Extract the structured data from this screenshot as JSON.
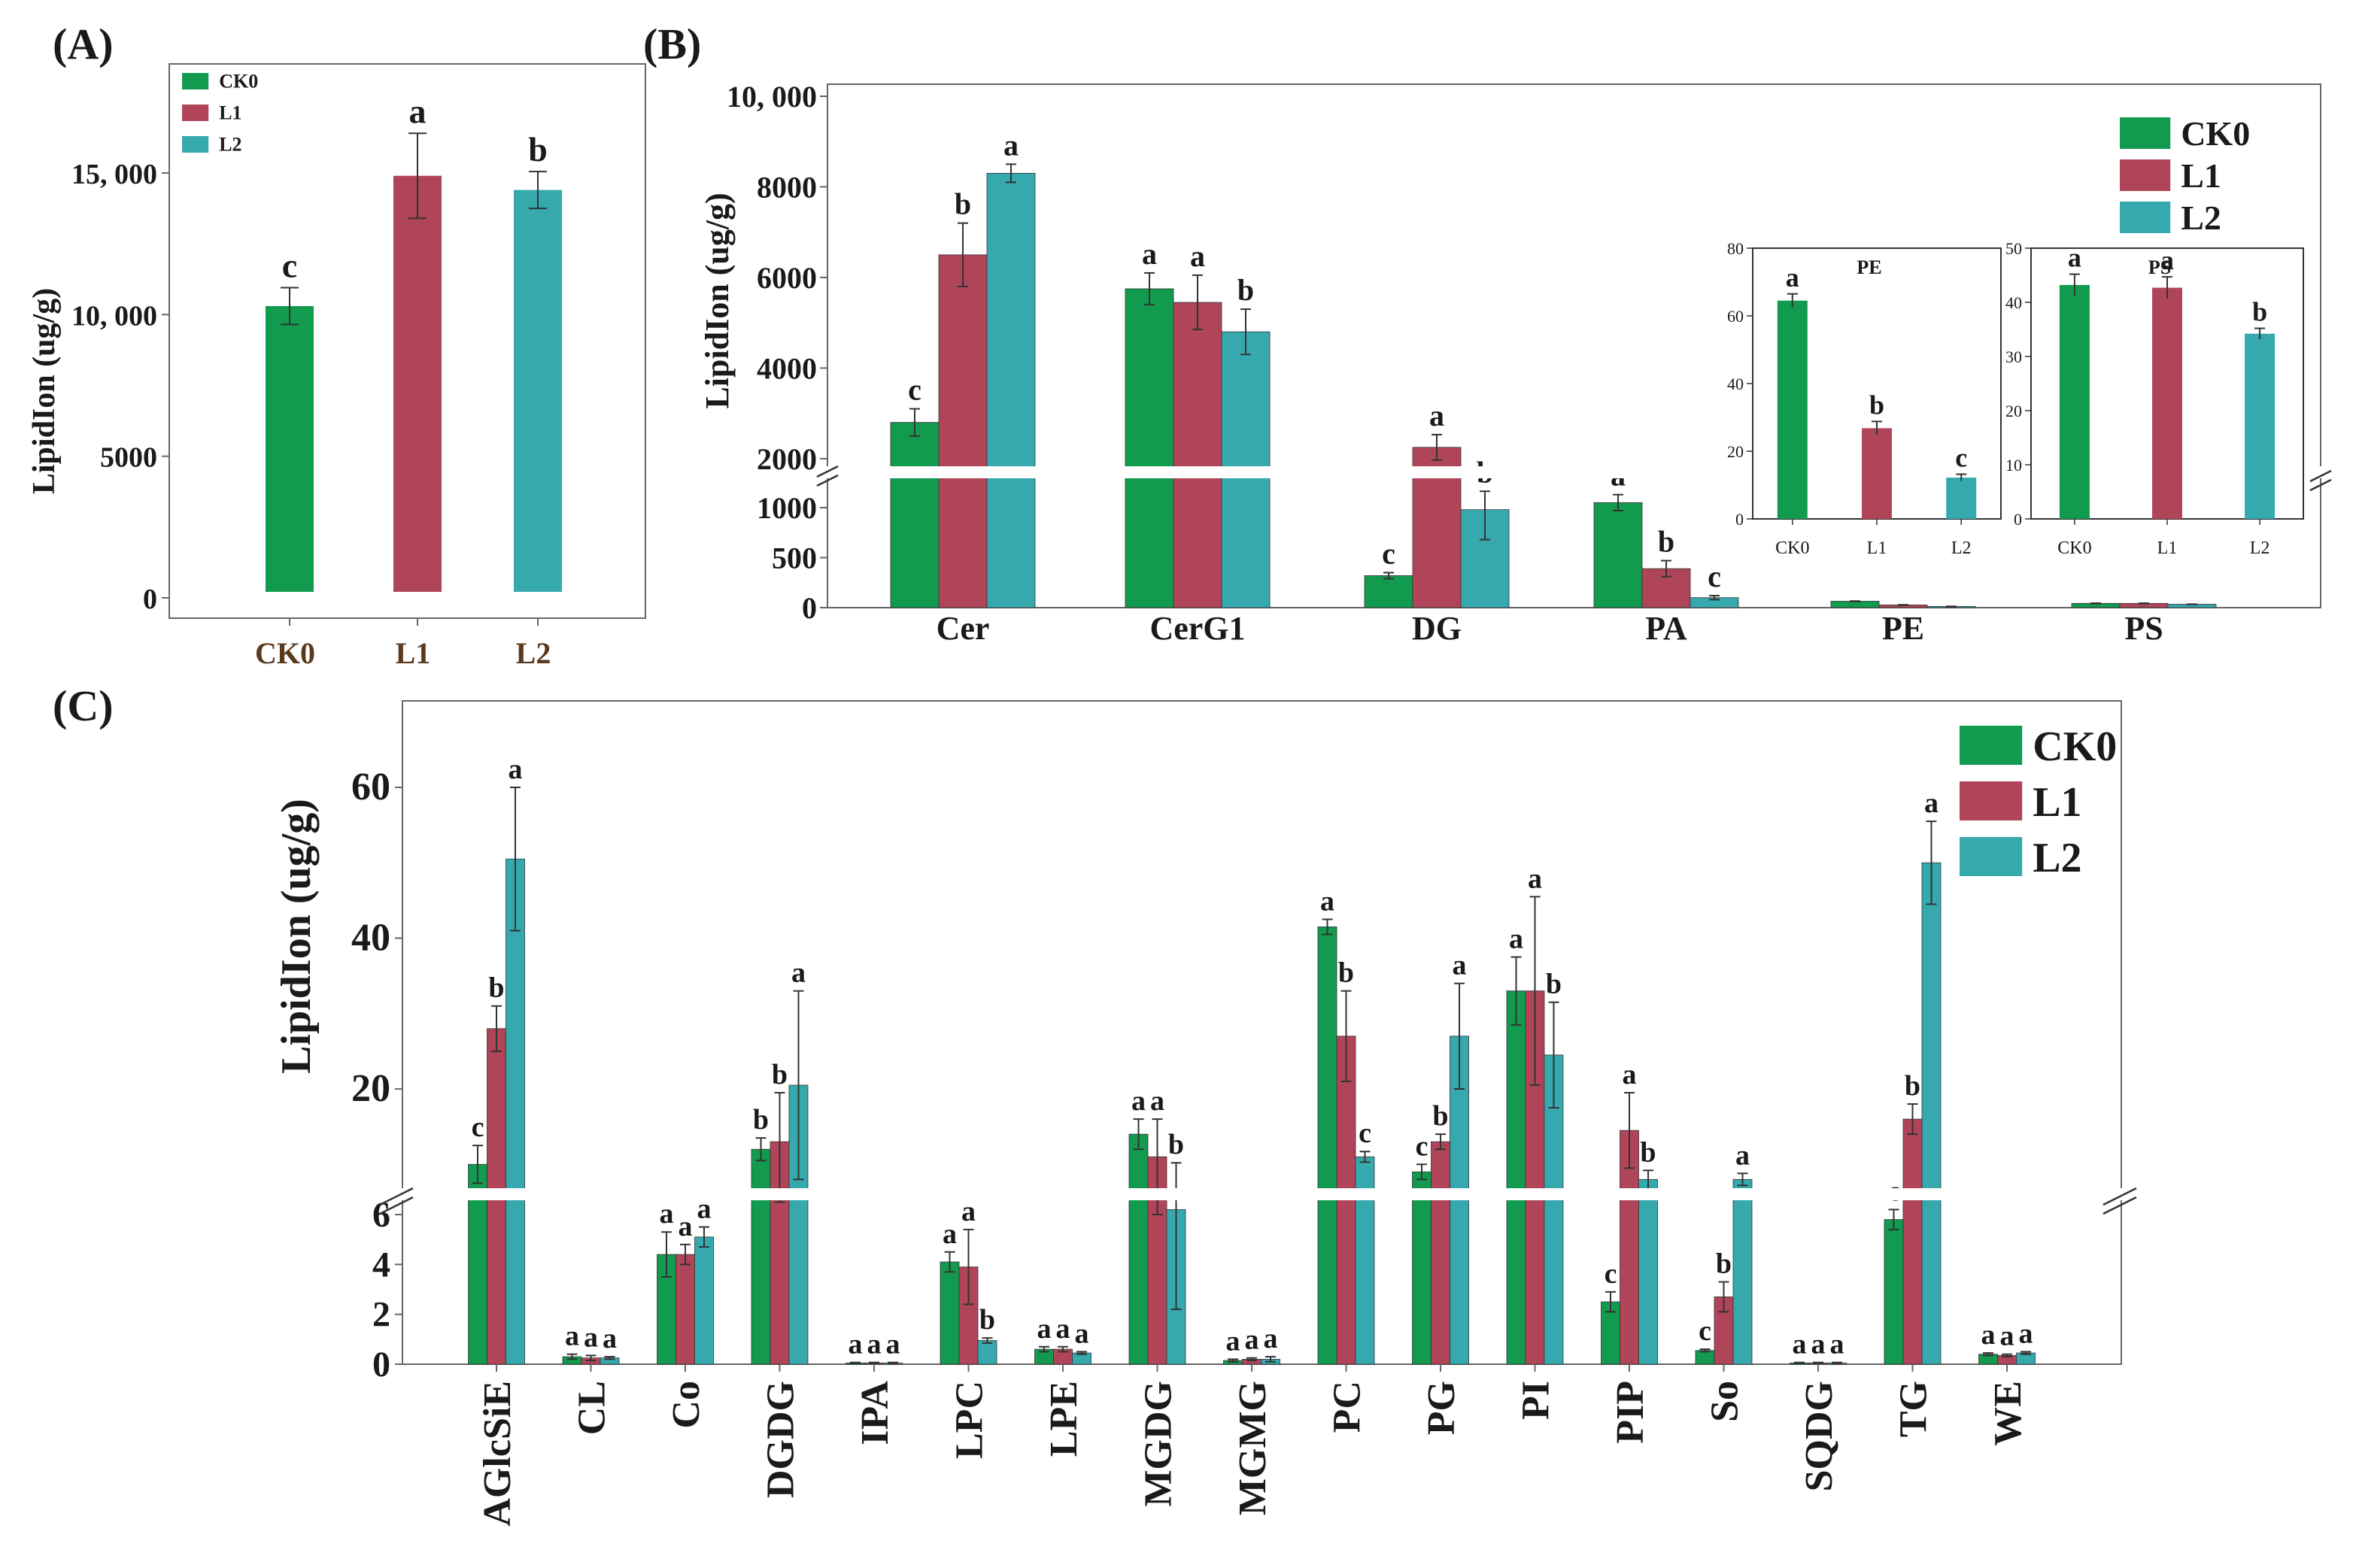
{
  "colors": {
    "CK0": "#129a4f",
    "L1": "#b0455a",
    "L2": "#35a9ae",
    "axis": "#555555",
    "text": "#1a1a1a"
  },
  "panels": {
    "A": {
      "label": "(A)"
    },
    "B": {
      "label": "(B)"
    },
    "C": {
      "label": "(C)"
    }
  },
  "chart_data": [
    {
      "id": "A",
      "type": "bar",
      "title": "",
      "xlabel": "",
      "ylabel": "LipidIon (ug/g)",
      "ylim": [
        0,
        18000
      ],
      "yticks": [
        "0",
        "5000",
        "10, 000",
        "15, 000"
      ],
      "ytick_values": [
        0,
        5000,
        10000,
        15000
      ],
      "categories": [
        "CK0",
        "L1",
        "L2"
      ],
      "values": [
        10300,
        14900,
        14400
      ],
      "errors": [
        650,
        1500,
        650
      ],
      "letters": [
        "c",
        "a",
        "b"
      ],
      "legend": {
        "position": "top-left",
        "entries": [
          "CK0",
          "L1",
          "L2"
        ]
      }
    },
    {
      "id": "B",
      "type": "bar",
      "ylabel": "LipidIon (ug/g)",
      "y_axis_break": [
        1200,
        1800
      ],
      "yticks_lower": [
        "0",
        "500",
        "1000"
      ],
      "yticks_upper": [
        "2000",
        "4000",
        "6000",
        "8000",
        "10, 000"
      ],
      "categories": [
        "Cer",
        "CerG1",
        "DG",
        "PA",
        "PE",
        "PS"
      ],
      "series": [
        {
          "name": "CK0",
          "values": [
            2800,
            5750,
            320,
            1050,
            64,
            43
          ],
          "errors": [
            300,
            350,
            30,
            80,
            2,
            2
          ],
          "letters": [
            "c",
            "a",
            "c",
            "a",
            "",
            ""
          ]
        },
        {
          "name": "L1",
          "values": [
            6500,
            5450,
            2250,
            390,
            27,
            42.5
          ],
          "errors": [
            700,
            600,
            280,
            80,
            2,
            2
          ],
          "letters": [
            "b",
            "a",
            "a",
            "b",
            "",
            ""
          ]
        },
        {
          "name": "L2",
          "values": [
            8300,
            4800,
            980,
            100,
            12,
            34
          ],
          "errors": [
            200,
            500,
            300,
            20,
            1,
            1
          ],
          "letters": [
            "a",
            "b",
            "b",
            "c",
            "",
            ""
          ]
        }
      ],
      "legend": {
        "position": "top-right",
        "entries": [
          "CK0",
          "L1",
          "L2"
        ]
      }
    },
    {
      "id": "B-inset-PE",
      "type": "bar",
      "title": "PE",
      "ylim": [
        0,
        80
      ],
      "yticks": [
        "0",
        "20",
        "40",
        "60",
        "80"
      ],
      "categories": [
        "CK0",
        "L1",
        "L2"
      ],
      "values": [
        64.5,
        26.8,
        12.2
      ],
      "errors": [
        2,
        2,
        1
      ],
      "letters": [
        "a",
        "b",
        "c"
      ]
    },
    {
      "id": "B-inset-PS",
      "type": "bar",
      "title": "PS",
      "ylim": [
        0,
        50
      ],
      "yticks": [
        "0",
        "10",
        "20",
        "30",
        "40",
        "50"
      ],
      "categories": [
        "CK0",
        "L1",
        "L2"
      ],
      "values": [
        43.2,
        42.7,
        34.2
      ],
      "errors": [
        2,
        2,
        1
      ],
      "letters": [
        "a",
        "a",
        "b"
      ]
    },
    {
      "id": "C",
      "type": "bar",
      "ylabel": "LipidIon (ug/g)",
      "y_axis_break": [
        7,
        9
      ],
      "yticks_lower": [
        "0",
        "2",
        "4",
        "6"
      ],
      "yticks_upper": [
        "20",
        "40",
        "60"
      ],
      "categories": [
        "AGlcSiE",
        "CL",
        "Co",
        "DGDG",
        "IPA",
        "LPC",
        "LPE",
        "MGDG",
        "MGMG",
        "PC",
        "PG",
        "PI",
        "PIP",
        "So",
        "SQDG",
        "TG",
        "WE"
      ],
      "series": [
        {
          "name": "CK0",
          "values": [
            10,
            0.3,
            4.4,
            12,
            0.05,
            4.1,
            0.6,
            14,
            0.15,
            41.5,
            9,
            33,
            2.5,
            0.55,
            0.05,
            5.8,
            0.4
          ],
          "errors": [
            2.5,
            0.1,
            0.9,
            1.5,
            0.02,
            0.4,
            0.1,
            2,
            0.05,
            1,
            1,
            4.5,
            0.4,
            0.05,
            0.02,
            0.4,
            0.05
          ],
          "letters": [
            "c",
            "a",
            "a",
            "b",
            "a",
            "a",
            "a",
            "a",
            "a",
            "a",
            "c",
            "a",
            "c",
            "c",
            "a",
            "c",
            "a"
          ]
        },
        {
          "name": "L1",
          "values": [
            28,
            0.25,
            4.4,
            13,
            0.05,
            3.9,
            0.6,
            11,
            0.2,
            27,
            13,
            33,
            14.5,
            2.7,
            0.05,
            16,
            0.35
          ],
          "errors": [
            3,
            0.1,
            0.4,
            6.5,
            0.02,
            1.5,
            0.1,
            5,
            0.05,
            6,
            1,
            12.5,
            5,
            0.6,
            0.02,
            2,
            0.05
          ],
          "letters": [
            "b",
            "a",
            "a",
            "b",
            "a",
            "a",
            "a",
            "a",
            "a",
            "b",
            "b",
            "a",
            "a",
            "b",
            "a",
            "b",
            "a"
          ]
        },
        {
          "name": "L2",
          "values": [
            50.5,
            0.25,
            5.1,
            20.5,
            0.05,
            0.95,
            0.45,
            6.2,
            0.2,
            11,
            27,
            24.5,
            8,
            8,
            0.05,
            50,
            0.45
          ],
          "errors": [
            9.5,
            0.05,
            0.4,
            12.5,
            0.02,
            0.1,
            0.05,
            4,
            0.1,
            0.7,
            7,
            7,
            1.2,
            0.8,
            0.02,
            5.5,
            0.05
          ],
          "letters": [
            "a",
            "a",
            "a",
            "a",
            "a",
            "b",
            "a",
            "b",
            "a",
            "c",
            "a",
            "b",
            "b",
            "a",
            "a",
            "a",
            "a"
          ]
        }
      ],
      "legend": {
        "position": "top-right",
        "entries": [
          "CK0",
          "L1",
          "L2"
        ]
      }
    }
  ]
}
